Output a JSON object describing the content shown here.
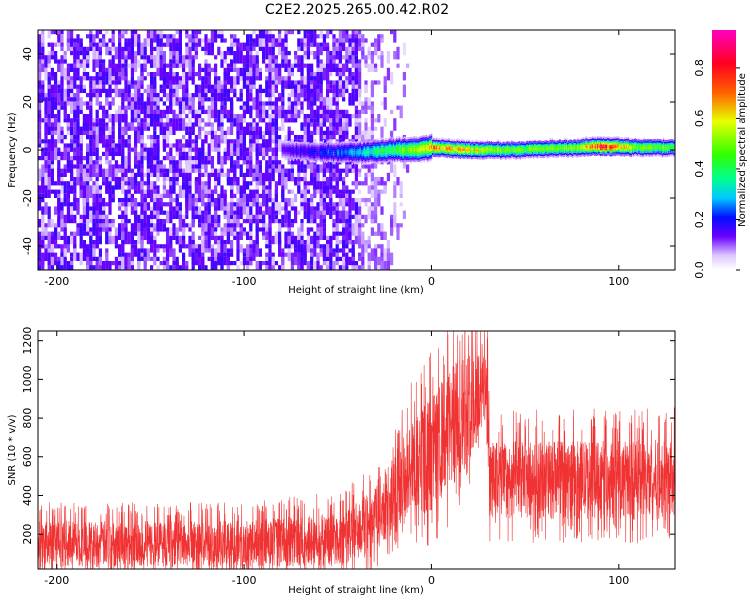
{
  "title": "C2E2.2025.265.00.42.R02",
  "chart_data": [
    {
      "type": "heatmap",
      "xlabel": "Height of straight line (km)",
      "ylabel": "Frequency (Hz)",
      "xlim": [
        -210,
        130
      ],
      "ylim": [
        -50,
        50
      ],
      "xticks": [
        -200,
        -100,
        0,
        100
      ],
      "yticks": [
        -40,
        -20,
        0,
        20,
        40
      ],
      "noise_region_x": [
        -210,
        -15
      ],
      "noise_fade_x": [
        -40,
        -15
      ],
      "signal_band": {
        "x": [
          -80,
          -60,
          -40,
          -20,
          -10,
          0,
          20,
          40,
          60,
          80,
          90,
          110,
          130
        ],
        "center_hz": [
          0,
          -1,
          -1,
          0,
          0,
          1,
          0,
          0,
          0.5,
          1,
          1.5,
          1,
          1
        ],
        "amplitude": [
          0.15,
          0.2,
          0.3,
          0.45,
          0.55,
          0.7,
          0.6,
          0.5,
          0.5,
          0.55,
          0.85,
          0.5,
          0.5
        ]
      },
      "colorbar": {
        "label": "Normalized spectral amplitude",
        "range": [
          0,
          0.95
        ],
        "ticks": [
          "0.0",
          "0.2",
          "0.4",
          "0.6",
          "0.8"
        ],
        "tick_values": [
          0,
          0.2,
          0.4,
          0.6,
          0.8
        ]
      }
    },
    {
      "type": "line",
      "xlabel": "Height of straight line (km)",
      "ylabel": "SNR (10 * v/v)",
      "xlim": [
        -210,
        130
      ],
      "ylim": [
        20,
        1250
      ],
      "xticks": [
        -200,
        -100,
        0,
        100
      ],
      "yticks": [
        200,
        400,
        600,
        800,
        1000,
        1200
      ],
      "series_color": "#f03232",
      "envelope": [
        {
          "x": -210,
          "mean": 150,
          "spread": 120
        },
        {
          "x": -100,
          "mean": 150,
          "spread": 120
        },
        {
          "x": -50,
          "mean": 170,
          "spread": 140
        },
        {
          "x": -35,
          "mean": 240,
          "spread": 160
        },
        {
          "x": -20,
          "mean": 400,
          "spread": 200
        },
        {
          "x": -12,
          "mean": 520,
          "spread": 260
        },
        {
          "x": 0,
          "mean": 620,
          "spread": 300
        },
        {
          "x": 15,
          "mean": 800,
          "spread": 320
        },
        {
          "x": 30,
          "mean": 1000,
          "spread": 220
        },
        {
          "x": 31,
          "mean": 480,
          "spread": 200
        },
        {
          "x": 130,
          "mean": 480,
          "spread": 210
        }
      ]
    }
  ]
}
